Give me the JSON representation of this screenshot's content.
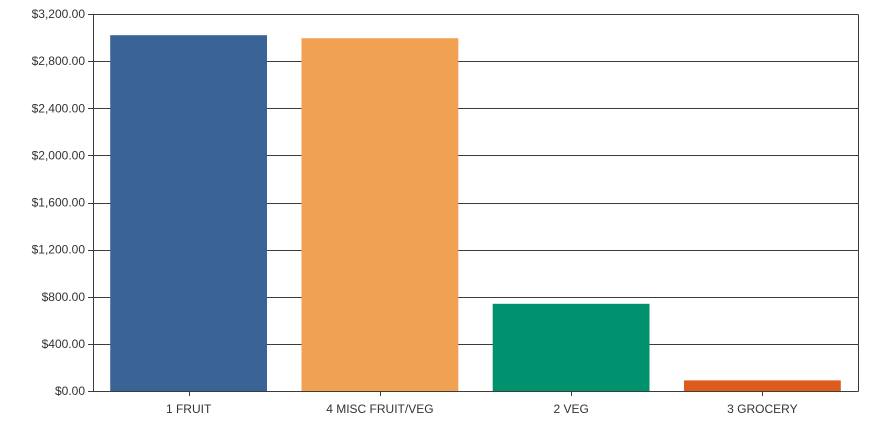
{
  "chart_data": {
    "type": "bar",
    "categories": [
      "1 FRUIT",
      "4 MISC FRUIT/VEG",
      "2 VEG",
      "3 GROCERY"
    ],
    "values": [
      3020,
      2995,
      740,
      90
    ],
    "colors": [
      "#3a6496",
      "#f0a252",
      "#00916e",
      "#dc5b1d"
    ],
    "ylim": [
      0,
      3200
    ],
    "yticks": [
      0,
      400,
      800,
      1200,
      1600,
      2000,
      2400,
      2800,
      3200
    ],
    "ytick_labels": [
      "$0.00",
      "$400.00",
      "$800.00",
      "$1,200.00",
      "$1,600.00",
      "$2,000.00",
      "$2,400.00",
      "$2,800.00",
      "$3,200.00"
    ],
    "grid": true,
    "title": "",
    "xlabel": "",
    "ylabel": ""
  }
}
